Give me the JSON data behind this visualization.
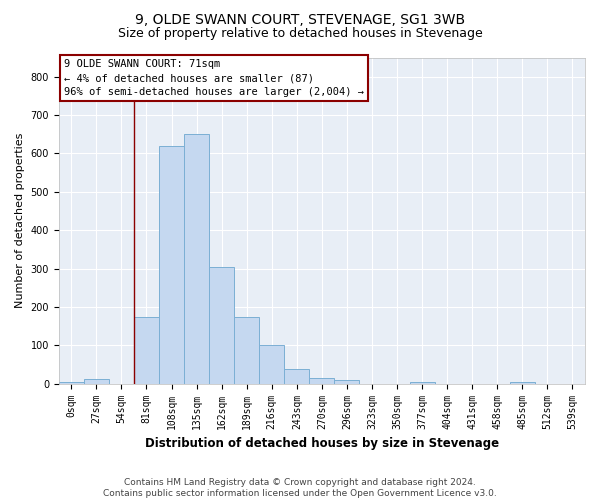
{
  "title": "9, OLDE SWANN COURT, STEVENAGE, SG1 3WB",
  "subtitle": "Size of property relative to detached houses in Stevenage",
  "xlabel": "Distribution of detached houses by size in Stevenage",
  "ylabel": "Number of detached properties",
  "bar_color": "#c5d8f0",
  "bar_edge_color": "#7bafd4",
  "bg_color": "#e8eef6",
  "grid_color": "#ffffff",
  "categories": [
    "0sqm",
    "27sqm",
    "54sqm",
    "81sqm",
    "108sqm",
    "135sqm",
    "162sqm",
    "189sqm",
    "216sqm",
    "243sqm",
    "270sqm",
    "296sqm",
    "323sqm",
    "350sqm",
    "377sqm",
    "404sqm",
    "431sqm",
    "458sqm",
    "485sqm",
    "512sqm",
    "539sqm"
  ],
  "values": [
    5,
    13,
    0,
    175,
    620,
    650,
    305,
    175,
    100,
    38,
    14,
    10,
    0,
    0,
    5,
    0,
    0,
    0,
    4,
    0,
    0
  ],
  "ylim": [
    0,
    850
  ],
  "yticks": [
    0,
    100,
    200,
    300,
    400,
    500,
    600,
    700,
    800
  ],
  "red_line_x": 2.5,
  "annotation_text": "9 OLDE SWANN COURT: 71sqm\n← 4% of detached houses are smaller (87)\n96% of semi-detached houses are larger (2,004) →",
  "footer": "Contains HM Land Registry data © Crown copyright and database right 2024.\nContains public sector information licensed under the Open Government Licence v3.0.",
  "title_fontsize": 10,
  "subtitle_fontsize": 9,
  "annotation_fontsize": 7.5,
  "footer_fontsize": 6.5,
  "ylabel_fontsize": 8,
  "xlabel_fontsize": 8.5,
  "tick_fontsize": 7
}
